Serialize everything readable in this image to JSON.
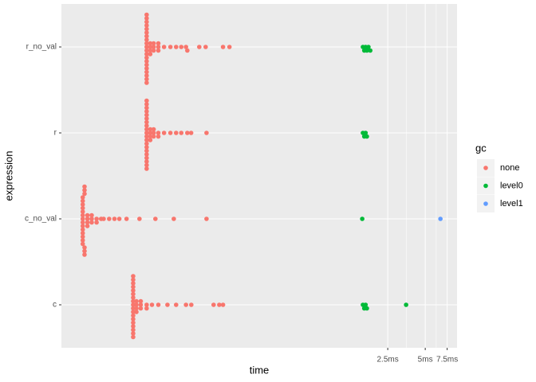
{
  "chart_data": {
    "type": "beeswarm",
    "x_label": "time",
    "y_label": "expression",
    "categories": [
      "c",
      "c_no_val",
      "r",
      "r_no_val"
    ],
    "xlim": [
      0.006,
      9
    ],
    "log_x": true,
    "xticks": [
      {
        "value": 2.5,
        "label": "2.5ms"
      },
      {
        "value": 5,
        "label": "5ms"
      },
      {
        "value": 7.5,
        "label": "7.5ms"
      }
    ],
    "legend_title": "gc",
    "series": [
      {
        "name": "none",
        "color": "#F8766D",
        "values": [
          [
            0.0226,
            0.0226,
            0.0226,
            0.0226,
            0.0226,
            0.0226,
            0.0226,
            0.0226,
            0.0226,
            0.0226,
            0.0226,
            0.0226,
            0.0226,
            0.0226,
            0.0226,
            0.0226,
            0.0226,
            0.0226,
            0.024,
            0.024,
            0.024,
            0.024,
            0.026,
            0.026,
            0.026,
            0.029,
            0.029,
            0.032,
            0.036,
            0.0426,
            0.05,
            0.06,
            0.0662,
            0.1,
            0.111,
            0.119
          ],
          [
            0.0089,
            0.0089,
            0.0089,
            0.0089,
            0.0089,
            0.0089,
            0.0089,
            0.0089,
            0.0089,
            0.0089,
            0.0089,
            0.0089,
            0.0089,
            0.0089,
            0.0092,
            0.0092,
            0.0092,
            0.0092,
            0.0092,
            0.0092,
            0.0097,
            0.0097,
            0.0097,
            0.0097,
            0.0105,
            0.0105,
            0.0105,
            0.0115,
            0.0115,
            0.0125,
            0.0131,
            0.0145,
            0.016,
            0.0175,
            0.02,
            0.0254,
            0.0341,
            0.0479,
            0.0877
          ],
          [
            0.029,
            0.029,
            0.029,
            0.029,
            0.029,
            0.029,
            0.029,
            0.029,
            0.029,
            0.029,
            0.029,
            0.029,
            0.029,
            0.029,
            0.029,
            0.029,
            0.029,
            0.029,
            0.029,
            0.029,
            0.031,
            0.031,
            0.031,
            0.031,
            0.033,
            0.033,
            0.033,
            0.036,
            0.036,
            0.04,
            0.045,
            0.05,
            0.055,
            0.0615,
            0.066,
            0.0877
          ],
          [
            0.029,
            0.029,
            0.029,
            0.029,
            0.029,
            0.029,
            0.029,
            0.029,
            0.029,
            0.029,
            0.029,
            0.029,
            0.029,
            0.029,
            0.029,
            0.029,
            0.029,
            0.029,
            0.029,
            0.029,
            0.031,
            0.031,
            0.031,
            0.031,
            0.033,
            0.033,
            0.033,
            0.036,
            0.036,
            0.036,
            0.04,
            0.045,
            0.05,
            0.055,
            0.06,
            0.0615,
            0.0767,
            0.0863,
            0.119,
            0.134
          ]
        ]
      },
      {
        "name": "level0",
        "color": "#00BA38",
        "values": [
          [
            1.58,
            1.62,
            1.66,
            1.7,
            3.51
          ],
          [
            1.56
          ],
          [
            1.58,
            1.62,
            1.66,
            1.7
          ],
          [
            1.58,
            1.62,
            1.66,
            1.7,
            1.75,
            1.81
          ]
        ]
      },
      {
        "name": "level1",
        "color": "#619CFF",
        "values": [
          [],
          [
            6.62
          ],
          [],
          []
        ]
      }
    ]
  }
}
